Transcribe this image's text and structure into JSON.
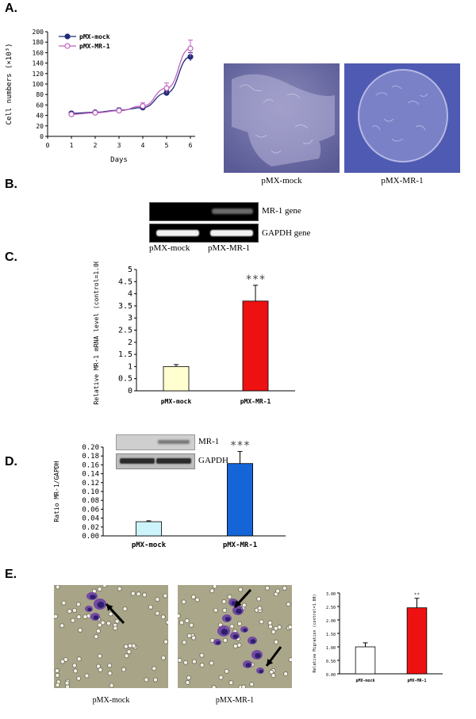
{
  "panels": {
    "a": "A.",
    "b": "B.",
    "c": "C.",
    "d": "D.",
    "e": "E."
  },
  "chart_data": [
    {
      "panel": "A",
      "type": "line",
      "xlabel": "Days",
      "ylabel": "Cell numbers (×10³)",
      "x": [
        1,
        2,
        3,
        4,
        5,
        6
      ],
      "xlim": [
        0,
        7
      ],
      "ylim": [
        0,
        200
      ],
      "xticks": [
        0,
        1,
        2,
        3,
        4,
        5,
        6
      ],
      "yticks": [
        0,
        20,
        40,
        60,
        80,
        100,
        120,
        140,
        160,
        180,
        200
      ],
      "legend_position": "top-left",
      "series": [
        {
          "name": "pMX-mock",
          "values": [
            44,
            46,
            50,
            55,
            83,
            152
          ],
          "errors": [
            3,
            3,
            4,
            4,
            5,
            8
          ],
          "color": "#1f2a7a",
          "marker": "filled-circle"
        },
        {
          "name": "pMX-MR-1",
          "values": [
            42,
            45,
            49,
            58,
            92,
            168
          ],
          "errors": [
            3,
            4,
            4,
            6,
            10,
            16
          ],
          "color": "#c060c0",
          "marker": "open-circle"
        }
      ]
    },
    {
      "panel": "C",
      "type": "bar",
      "ylabel": "Relative MR-1 mRNA level (control=1.00)",
      "categories": [
        "pMX-mock",
        "pMX-MR-1"
      ],
      "values": [
        1.0,
        3.7
      ],
      "errors": [
        0.08,
        0.65
      ],
      "colors": [
        "#ffffd0",
        "#ee1111"
      ],
      "ylim": [
        0,
        5
      ],
      "yticks": [
        0,
        0.5,
        1,
        1.5,
        2,
        2.5,
        3,
        3.5,
        4,
        4.5,
        5
      ],
      "annotation": "***"
    },
    {
      "panel": "D",
      "type": "bar",
      "ylabel": "Ratio MR-1/GAPDH",
      "categories": [
        "pMX-mock",
        "pMX-MR-1"
      ],
      "values": [
        0.032,
        0.163
      ],
      "errors": [
        0.002,
        0.027
      ],
      "colors": [
        "#ccf4fa",
        "#1565d8"
      ],
      "ylim": [
        0,
        0.2
      ],
      "yticks": [
        0.0,
        0.02,
        0.04,
        0.06,
        0.08,
        0.1,
        0.12,
        0.14,
        0.16,
        0.18,
        0.2
      ],
      "ytick_labels": [
        "0.00",
        "0.02",
        "0.04",
        "0.06",
        "0.08",
        "0.10",
        "0.12",
        "0.14",
        "0.16",
        "0.18",
        "0.20"
      ],
      "annotation": "***"
    },
    {
      "panel": "E",
      "type": "bar",
      "ylabel": "Relative Migration (control=1.00)",
      "categories": [
        "pMX-mock",
        "pMX-MR-1"
      ],
      "values": [
        1.0,
        2.45
      ],
      "errors": [
        0.15,
        0.35
      ],
      "colors": [
        "#ffffff",
        "#ee1111"
      ],
      "ylim": [
        0,
        3
      ],
      "yticks": [
        0,
        0.5,
        1,
        1.5,
        2,
        2.5,
        3
      ],
      "ytick_labels": [
        "0.00",
        "0.50",
        "1.00",
        "1.50",
        "2.00",
        "2.50",
        "3.00"
      ],
      "annotation": "**"
    }
  ],
  "micrographs_a": {
    "left_caption": "pMX-mock",
    "right_caption": "pMX-MR-1"
  },
  "gel_b": {
    "row1_label": "MR-1 gene",
    "row2_label": "GAPDH gene",
    "lane1": "pMX-mock",
    "lane2": "pMX-MR-1"
  },
  "blot_d": {
    "row1_label": "MR-1",
    "row2_label": "GAPDH"
  },
  "micrographs_e": {
    "left_caption": "pMX-mock",
    "right_caption": "pMX-MR-1"
  }
}
